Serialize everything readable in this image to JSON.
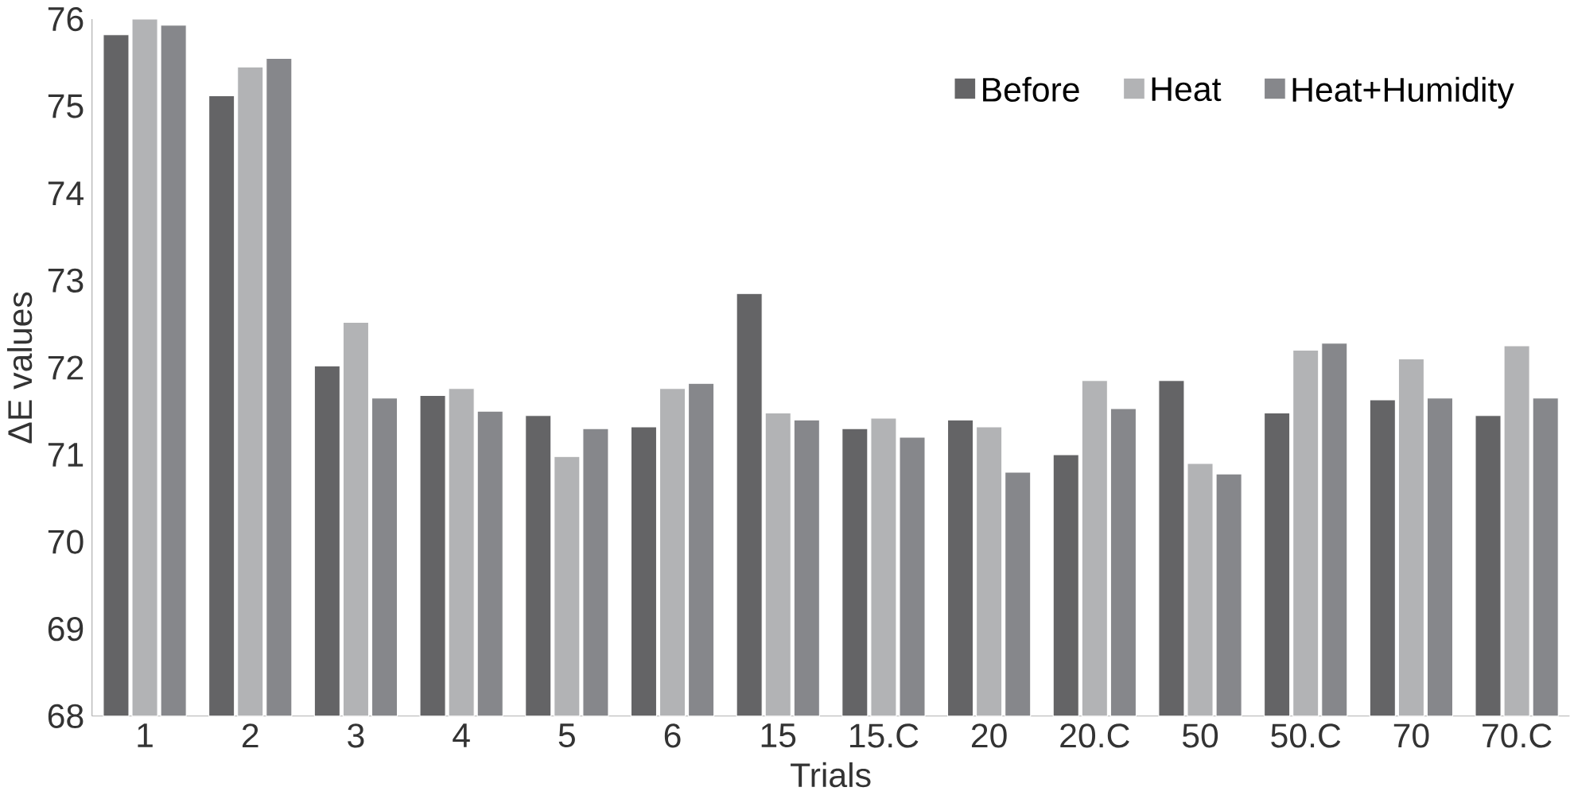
{
  "chart_data": {
    "type": "bar",
    "xlabel": "Trials",
    "ylabel": "ΔE values",
    "categories": [
      "1",
      "2",
      "3",
      "4",
      "5",
      "6",
      "15",
      "15.C",
      "20",
      "20.C",
      "50",
      "50.C",
      "70",
      "70.C"
    ],
    "series": [
      {
        "name": "Before",
        "color": "#646466",
        "values": [
          75.82,
          75.12,
          72.02,
          71.68,
          71.45,
          71.32,
          72.85,
          71.3,
          71.4,
          71.0,
          71.85,
          71.48,
          71.63,
          71.45
        ]
      },
      {
        "name": "Heat",
        "color": "#b2b3b5",
        "values": [
          76.0,
          75.45,
          72.52,
          71.76,
          70.98,
          71.76,
          71.48,
          71.42,
          71.32,
          71.85,
          70.9,
          72.2,
          72.1,
          72.25
        ]
      },
      {
        "name": "Heat+Humidity",
        "color": "#86878b",
        "values": [
          75.93,
          75.55,
          71.65,
          71.5,
          71.3,
          71.82,
          71.4,
          71.2,
          70.8,
          71.53,
          70.78,
          72.28,
          71.65,
          71.65
        ]
      }
    ],
    "ylim": [
      68,
      76
    ],
    "yticks": [
      68,
      69,
      70,
      71,
      72,
      73,
      74,
      75,
      76
    ],
    "grid": false,
    "legend": "top right"
  }
}
